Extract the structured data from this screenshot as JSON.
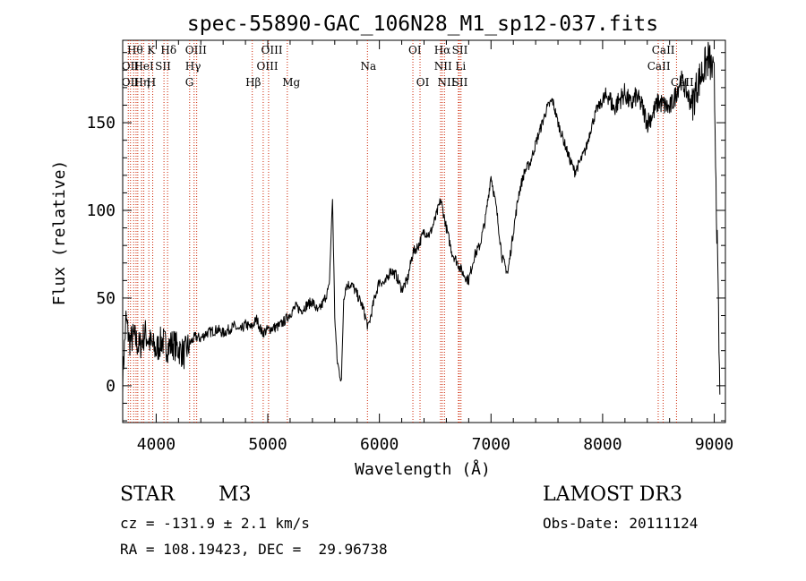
{
  "chart_data": {
    "type": "line",
    "title": "spec-55890-GAC_106N28_M1_sp12-037.fits",
    "xlabel": "Wavelength (Å)",
    "ylabel": "Flux (relative)",
    "xlim": [
      3700,
      9100
    ],
    "ylim": [
      -21,
      197
    ],
    "x_ticks": [
      4000,
      5000,
      6000,
      7000,
      8000,
      9000
    ],
    "y_ticks": [
      0,
      50,
      100,
      150
    ],
    "series": [
      {
        "name": "flux",
        "x": [
          3700,
          3730,
          3760,
          3800,
          3850,
          3900,
          3950,
          4000,
          4050,
          4100,
          4150,
          4200,
          4250,
          4300,
          4350,
          4400,
          4450,
          4500,
          4550,
          4600,
          4650,
          4700,
          4750,
          4800,
          4850,
          4900,
          4950,
          5000,
          5050,
          5100,
          5150,
          5200,
          5250,
          5300,
          5350,
          5400,
          5450,
          5500,
          5550,
          5580,
          5600,
          5620,
          5640,
          5660,
          5680,
          5700,
          5750,
          5800,
          5850,
          5900,
          5950,
          6000,
          6050,
          6100,
          6150,
          6200,
          6250,
          6300,
          6350,
          6400,
          6450,
          6500,
          6550,
          6600,
          6650,
          6700,
          6750,
          6800,
          6850,
          6900,
          6950,
          7000,
          7050,
          7100,
          7150,
          7200,
          7250,
          7300,
          7350,
          7400,
          7450,
          7500,
          7550,
          7600,
          7650,
          7700,
          7750,
          7800,
          7850,
          7900,
          7950,
          8000,
          8050,
          8100,
          8150,
          8200,
          8250,
          8300,
          8350,
          8400,
          8450,
          8500,
          8550,
          8600,
          8650,
          8700,
          8750,
          8800,
          8850,
          8900,
          8950,
          9000,
          9050
        ],
        "y": [
          5,
          38,
          25,
          28,
          22,
          30,
          24,
          20,
          26,
          22,
          24,
          21,
          18,
          24,
          28,
          27,
          30,
          31,
          32,
          30,
          32,
          34,
          31,
          35,
          33,
          38,
          30,
          32,
          33,
          34,
          37,
          41,
          45,
          43,
          46,
          48,
          42,
          48,
          56,
          107,
          40,
          15,
          8,
          3,
          50,
          57,
          58,
          52,
          45,
          33,
          48,
          60,
          58,
          66,
          63,
          55,
          60,
          76,
          80,
          88,
          86,
          95,
          106,
          90,
          76,
          70,
          64,
          60,
          74,
          80,
          95,
          120,
          100,
          73,
          64,
          88,
          110,
          122,
          127,
          138,
          148,
          158,
          163,
          150,
          140,
          130,
          122,
          128,
          135,
          148,
          158,
          162,
          166,
          158,
          163,
          167,
          160,
          165,
          160,
          150,
          155,
          162,
          160,
          158,
          165,
          175,
          168,
          160,
          172,
          180,
          187,
          175,
          -5
        ]
      }
    ],
    "line_markers": [
      {
        "wavelength": 3750,
        "label": "CaII H"
      },
      {
        "wavelength": 3770,
        "label": "Hθ"
      },
      {
        "wavelength": 3798,
        "label": "Hη"
      },
      {
        "wavelength": 3820,
        "label": "HeI"
      },
      {
        "wavelength": 3835,
        "label": "Hη"
      },
      {
        "wavelength": 3870,
        "label": "H"
      },
      {
        "wavelength": 3889,
        "label": "HeI"
      },
      {
        "wavelength": 3934,
        "label": "K"
      },
      {
        "wavelength": 3969,
        "label": "H"
      },
      {
        "wavelength": 4070,
        "label": "SII"
      },
      {
        "wavelength": 4102,
        "label": "Hδ"
      },
      {
        "wavelength": 4300,
        "label": "G"
      },
      {
        "wavelength": 4340,
        "label": "Hγ"
      },
      {
        "wavelength": 4363,
        "label": "OIII"
      },
      {
        "wavelength": 4861,
        "label": "Hβ"
      },
      {
        "wavelength": 4959,
        "label": "OIII"
      },
      {
        "wavelength": 5007,
        "label": "OIII"
      },
      {
        "wavelength": 5175,
        "label": "Mg"
      },
      {
        "wavelength": 5893,
        "label": "Na"
      },
      {
        "wavelength": 6300,
        "label": "OI"
      },
      {
        "wavelength": 6364,
        "label": "OI"
      },
      {
        "wavelength": 6548,
        "label": "NII"
      },
      {
        "wavelength": 6563,
        "label": "Hα"
      },
      {
        "wavelength": 6583,
        "label": "NII"
      },
      {
        "wavelength": 6708,
        "label": "Li"
      },
      {
        "wavelength": 6716,
        "label": "SII"
      },
      {
        "wavelength": 6731,
        "label": "SII"
      },
      {
        "wavelength": 8498,
        "label": "CaII"
      },
      {
        "wavelength": 8542,
        "label": "CaII"
      },
      {
        "wavelength": 8662,
        "label": "CaII"
      }
    ],
    "header_labels": [
      {
        "text": "Hθ",
        "wl": 3740,
        "row": 0
      },
      {
        "text": "K",
        "wl": 3920,
        "row": 0
      },
      {
        "text": "Hδ",
        "wl": 4040,
        "row": 0
      },
      {
        "text": "OII",
        "wl": 3690,
        "row": 1
      },
      {
        "text": "HeI",
        "wl": 3800,
        "row": 1
      },
      {
        "text": "SII",
        "wl": 3990,
        "row": 1
      },
      {
        "text": "OII",
        "wl": 3690,
        "row": 2
      },
      {
        "text": "Hη",
        "wl": 3800,
        "row": 2
      },
      {
        "text": "H",
        "wl": 3915,
        "row": 2
      },
      {
        "text": "OIII",
        "wl": 4260,
        "row": 0
      },
      {
        "text": "Hγ",
        "wl": 4260,
        "row": 1
      },
      {
        "text": "G",
        "wl": 4260,
        "row": 2
      },
      {
        "text": "Hβ",
        "wl": 4800,
        "row": 2
      },
      {
        "text": "OIII",
        "wl": 4940,
        "row": 0
      },
      {
        "text": "OIII",
        "wl": 4900,
        "row": 1
      },
      {
        "text": "Mg",
        "wl": 5130,
        "row": 2
      },
      {
        "text": "Na",
        "wl": 5830,
        "row": 1
      },
      {
        "text": "OI",
        "wl": 6260,
        "row": 0
      },
      {
        "text": "OI",
        "wl": 6330,
        "row": 2
      },
      {
        "text": "Hα",
        "wl": 6490,
        "row": 0
      },
      {
        "text": "SII",
        "wl": 6650,
        "row": 0
      },
      {
        "text": "NII",
        "wl": 6490,
        "row": 1
      },
      {
        "text": "Li",
        "wl": 6680,
        "row": 1
      },
      {
        "text": "NII",
        "wl": 6520,
        "row": 2
      },
      {
        "text": "SII",
        "wl": 6650,
        "row": 2
      },
      {
        "text": "CaII",
        "wl": 8440,
        "row": 0
      },
      {
        "text": "CaII",
        "wl": 8400,
        "row": 1
      },
      {
        "text": "CaII",
        "wl": 8610,
        "row": 2
      }
    ],
    "grid": false,
    "marker_color": "#cc2200",
    "line_color": "#000000"
  },
  "info": {
    "class": "STAR",
    "subclass": "M3",
    "survey": "LAMOST DR3",
    "cz": "cz = -131.9 ± 2.1 km/s",
    "obs_date": "Obs-Date: 20111124",
    "radec": "RA = 108.19423, DEC =  29.96738"
  }
}
